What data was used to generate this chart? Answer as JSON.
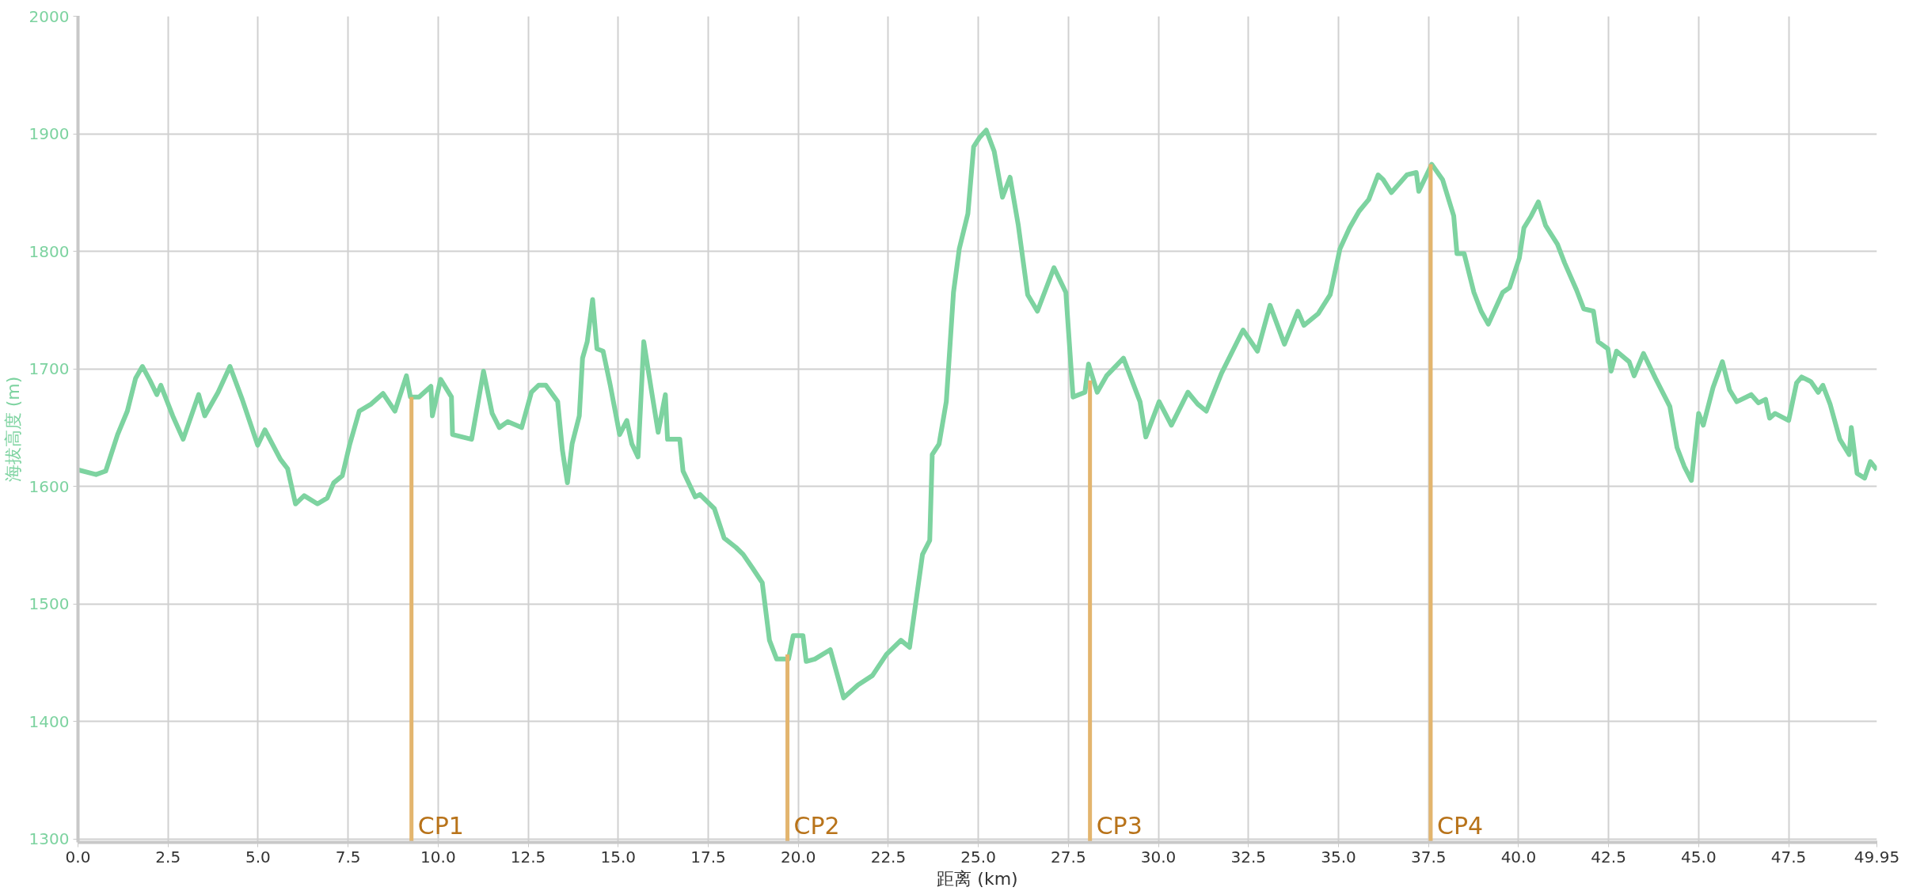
{
  "chart_data": {
    "type": "line",
    "xlabel": "距离 (km)",
    "ylabel": "海拔高度 (m)",
    "xlim": [
      0,
      49.95
    ],
    "ylim": [
      1297,
      2000
    ],
    "xticks": [
      {
        "value": 0,
        "label": "0.0"
      },
      2.5,
      {
        "value": 5,
        "label": "5.0"
      },
      7.5,
      {
        "value": 10,
        "label": "10.0"
      },
      12.5,
      {
        "value": 15,
        "label": "15.0"
      },
      17.5,
      {
        "value": 20,
        "label": "20.0"
      },
      22.5,
      {
        "value": 25,
        "label": "25.0"
      },
      27.5,
      {
        "value": 30,
        "label": "30.0"
      },
      32.5,
      {
        "value": 35,
        "label": "35.0"
      },
      37.5,
      {
        "value": 40,
        "label": "40.0"
      },
      42.5,
      {
        "value": 45,
        "label": "45.0"
      },
      47.5,
      49.95
    ],
    "yticks": [
      1300,
      1400,
      1500,
      1600,
      1700,
      1800,
      1900,
      2000
    ],
    "grid": true,
    "marker": "none",
    "line_style": "solid",
    "series": [
      {
        "color": "#7dd3a0",
        "x": [
          0,
          0.5,
          0.77,
          1.1,
          1.37,
          1.6,
          1.79,
          2.0,
          2.19,
          2.3,
          2.63,
          2.92,
          3.35,
          3.52,
          3.89,
          4.22,
          4.56,
          4.99,
          5.19,
          5.62,
          5.82,
          6.04,
          6.28,
          6.65,
          6.92,
          7.1,
          7.34,
          7.54,
          7.81,
          8.14,
          8.47,
          8.8,
          9.12,
          9.23,
          9.47,
          9.8,
          9.84,
          10.07,
          10.37,
          10.4,
          10.93,
          11.26,
          11.5,
          11.7,
          11.93,
          12.32,
          12.59,
          12.79,
          12.99,
          13.32,
          13.45,
          13.59,
          13.72,
          13.92,
          14.01,
          14.14,
          14.29,
          14.41,
          14.58,
          14.78,
          15.04,
          15.24,
          15.38,
          15.55,
          15.71,
          15.91,
          16.11,
          16.31,
          16.37,
          16.71,
          16.8,
          17.14,
          17.27,
          17.67,
          17.94,
          18.27,
          18.47,
          18.74,
          19.0,
          19.2,
          19.4,
          19.73,
          19.86,
          20.13,
          20.22,
          20.46,
          20.89,
          21.26,
          21.66,
          22.06,
          22.45,
          22.85,
          23.09,
          23.45,
          23.65,
          23.72,
          23.91,
          24.11,
          24.31,
          24.47,
          24.71,
          24.87,
          25.04,
          25.22,
          25.44,
          25.67,
          25.88,
          26.11,
          26.37,
          26.64,
          27.1,
          27.43,
          27.63,
          27.96,
          28.06,
          28.3,
          28.56,
          29.03,
          29.29,
          29.49,
          29.65,
          30.02,
          30.36,
          30.82,
          31.09,
          31.33,
          31.75,
          32.35,
          32.75,
          33.1,
          33.5,
          33.87,
          34.04,
          34.44,
          34.77,
          35.04,
          35.31,
          35.57,
          35.84,
          36.1,
          36.24,
          36.47,
          36.9,
          37.16,
          37.23,
          37.59,
          37.89,
          38.2,
          38.29,
          38.49,
          38.76,
          38.96,
          39.16,
          39.56,
          39.75,
          40.02,
          40.15,
          40.35,
          40.55,
          40.75,
          41.08,
          41.28,
          41.61,
          41.81,
          42.08,
          42.21,
          42.48,
          42.57,
          42.72,
          43.07,
          43.21,
          43.47,
          43.8,
          44.2,
          44.4,
          44.6,
          44.8,
          45.0,
          45.13,
          45.4,
          45.66,
          45.86,
          46.06,
          46.46,
          46.66,
          46.86,
          46.97,
          47.12,
          47.5,
          47.72,
          47.86,
          48.12,
          48.32,
          48.45,
          48.65,
          48.92,
          49.18,
          49.24,
          49.4,
          49.61,
          49.77,
          49.95
        ],
        "values": [
          1614,
          1610,
          1613,
          1644,
          1664,
          1692,
          1702,
          1690,
          1678,
          1686,
          1660,
          1640,
          1678,
          1660,
          1680,
          1702,
          1674,
          1635,
          1648,
          1623,
          1615,
          1585,
          1592,
          1585,
          1590,
          1603,
          1609,
          1635,
          1664,
          1670,
          1679,
          1664,
          1694,
          1676,
          1676,
          1685,
          1660,
          1691,
          1676,
          1644,
          1640,
          1698,
          1662,
          1650,
          1655,
          1650,
          1680,
          1686,
          1686,
          1672,
          1631,
          1603,
          1636,
          1660,
          1709,
          1723,
          1759,
          1717,
          1715,
          1686,
          1644,
          1656,
          1636,
          1625,
          1723,
          1684,
          1646,
          1678,
          1640,
          1640,
          1613,
          1591,
          1593,
          1581,
          1556,
          1548,
          1542,
          1530,
          1518,
          1469,
          1453,
          1453,
          1473,
          1473,
          1451,
          1453,
          1461,
          1420,
          1431,
          1439,
          1457,
          1469,
          1463,
          1542,
          1554,
          1627,
          1636,
          1672,
          1765,
          1802,
          1832,
          1889,
          1897,
          1903,
          1885,
          1846,
          1863,
          1822,
          1763,
          1749,
          1786,
          1765,
          1676,
          1680,
          1704,
          1680,
          1694,
          1709,
          1688,
          1672,
          1642,
          1672,
          1652,
          1680,
          1670,
          1664,
          1696,
          1733,
          1715,
          1754,
          1721,
          1749,
          1737,
          1747,
          1763,
          1802,
          1820,
          1834,
          1844,
          1865,
          1861,
          1850,
          1865,
          1867,
          1851,
          1874,
          1861,
          1830,
          1798,
          1798,
          1765,
          1749,
          1738,
          1765,
          1769,
          1794,
          1820,
          1830,
          1842,
          1822,
          1806,
          1790,
          1767,
          1751,
          1749,
          1723,
          1717,
          1698,
          1715,
          1706,
          1694,
          1713,
          1692,
          1668,
          1633,
          1617,
          1605,
          1662,
          1652,
          1684,
          1706,
          1682,
          1672,
          1678,
          1671,
          1674,
          1658,
          1662,
          1656,
          1688,
          1693,
          1689,
          1680,
          1686,
          1670,
          1640,
          1627,
          1650,
          1611,
          1607,
          1621,
          1614
        ]
      }
    ],
    "annotations": [
      {
        "text": "CP1",
        "x": 9.26,
        "y": 1676
      },
      {
        "text": "CP2",
        "x": 19.7,
        "y": 1457
      },
      {
        "text": "CP3",
        "x": 28.1,
        "y": 1690
      },
      {
        "text": "CP4",
        "x": 37.56,
        "y": 1874
      }
    ]
  }
}
